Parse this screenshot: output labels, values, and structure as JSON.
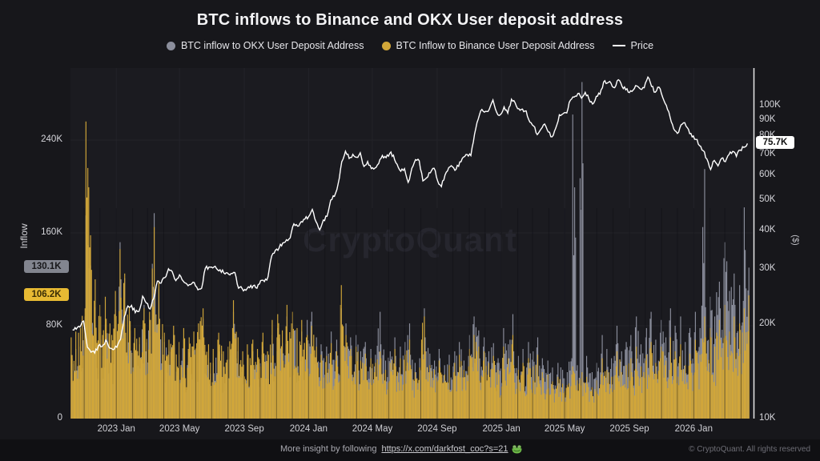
{
  "title": "BTC inflows to Binance and OKX User deposit address",
  "legend": [
    {
      "label": "BTC inflow to OKX User Deposit Address",
      "marker": "dot",
      "color": "#8b8e9c"
    },
    {
      "label": "BTC Inflow to Binance User Deposit Address",
      "marker": "dot",
      "color": "#d2a739"
    },
    {
      "label": "Price",
      "marker": "line",
      "color": "#ffffff"
    }
  ],
  "watermark": "CryptoQuant",
  "badges": {
    "okx": {
      "label": "130.1K",
      "value": 130.1,
      "bg": "#82858f",
      "fg": "#17171a"
    },
    "binance": {
      "label": "106.2K",
      "value": 106.2,
      "bg": "#e7ba33",
      "fg": "#3a2e06"
    },
    "price": {
      "label": "75.7K",
      "value": 75.7,
      "bg": "#ffffff",
      "fg": "#111111"
    }
  },
  "footer": {
    "text": "More insight by following",
    "link": "https://x.com/darkfost_coc?s=21",
    "frog_icon": "frog-emoji",
    "copyright": "© CryptoQuant. All rights reserved"
  },
  "colors": {
    "page_bg": "#17171b",
    "plot_bg": "#1b1b20",
    "grid": "#232329",
    "okx_bar": "#8b8e9c",
    "binance_bar": "#d2a739",
    "price_line": "#ffffff",
    "right_axis_line": "#e8e8ea",
    "month_shadow": "rgba(14,14,17,0.45)"
  },
  "chart_data": {
    "type": "mixed",
    "title": "BTC inflows to Binance and OKX User deposit address",
    "x_axis": {
      "start": "2022-10-06",
      "end": "2026-04-23",
      "tick_labels": [
        "2023 Jan",
        "2023 May",
        "2023 Sep",
        "2024 Jan",
        "2024 May",
        "2024 Sep",
        "2025 Jan",
        "2025 May",
        "2025 Sep",
        "2026 Jan"
      ],
      "tick_dates": [
        "2023-01-01",
        "2023-05-01",
        "2023-09-01",
        "2024-01-01",
        "2024-05-01",
        "2024-09-01",
        "2025-01-01",
        "2025-05-01",
        "2025-09-01",
        "2026-01-01"
      ]
    },
    "series_start": "2022-10-10",
    "interval_days": 7,
    "left_axis": {
      "title": "Inflow",
      "unit": "K BTC",
      "scale": "linear",
      "ticks": [
        {
          "label": "0",
          "value": 0
        },
        {
          "label": "80K",
          "value": 80
        },
        {
          "label": "160K",
          "value": 160
        },
        {
          "label": "240K",
          "value": 240
        }
      ]
    },
    "right_axis": {
      "title": "($)",
      "unit": "K USD",
      "scale": "log",
      "ticks": [
        {
          "label": "10K",
          "value": 10
        },
        {
          "label": "20K",
          "value": 20
        },
        {
          "label": "30K",
          "value": 30
        },
        {
          "label": "40K",
          "value": 40
        },
        {
          "label": "50K",
          "value": 50
        },
        {
          "label": "60K",
          "value": 60
        },
        {
          "label": "70K",
          "value": 70
        },
        {
          "label": "80K",
          "value": 80
        },
        {
          "label": "90K",
          "value": 90
        },
        {
          "label": "100K",
          "value": 100
        }
      ]
    },
    "series": [
      {
        "name": "BTC inflow to OKX User Deposit Address",
        "type": "bar",
        "axis": "left",
        "color": "#8b8e9c",
        "latest": 130.1,
        "values": [
          55,
          60,
          62,
          88,
          175,
          132,
          96,
          74,
          68,
          81,
          59,
          66,
          94,
          152,
          121,
          88,
          76,
          70,
          64,
          98,
          72,
          85,
          177,
          112,
          78,
          66,
          58,
          72,
          61,
          55,
          68,
          49,
          57,
          64,
          70,
          86,
          58,
          52,
          48,
          56,
          62,
          45,
          51,
          66,
          92,
          58,
          47,
          52,
          44,
          58,
          49,
          55,
          62,
          48,
          72,
          58,
          78,
          65,
          88,
          71,
          82,
          68,
          75,
          61,
          85,
          92,
          70,
          64,
          58,
          62,
          75,
          58,
          68,
          95,
          82,
          70,
          63,
          72,
          58,
          66,
          52,
          60,
          55,
          92,
          64,
          50,
          58,
          70,
          54,
          62,
          66,
          82,
          55,
          48,
          52,
          95,
          70,
          56,
          50,
          60,
          52,
          46,
          55,
          48,
          58,
          66,
          50,
          54,
          72,
          88,
          76,
          62,
          70,
          58,
          65,
          52,
          48,
          78,
          64,
          90,
          58,
          54,
          60,
          48,
          66,
          58,
          70,
          52,
          46,
          50,
          44,
          38,
          48,
          42,
          40,
          52,
          262,
          46,
          290,
          54,
          44,
          40,
          48,
          56,
          72,
          60,
          52,
          64,
          80,
          58,
          66,
          72,
          58,
          88,
          64,
          70,
          78,
          92,
          68,
          74,
          85,
          70,
          95,
          80,
          74,
          88,
          66,
          78,
          70,
          92,
          78,
          215,
          96,
          105,
          88,
          118,
          95,
          152,
          110,
          125,
          98,
          115,
          182,
          130.1
        ]
      },
      {
        "name": "BTC Inflow to Binance User Deposit Address",
        "type": "bar",
        "axis": "left",
        "color": "#d2a739",
        "latest": 106.2,
        "values": [
          70,
          75,
          78,
          95,
          256,
          158,
          120,
          98,
          88,
          105,
          82,
          90,
          110,
          146,
          125,
          96,
          84,
          78,
          70,
          95,
          82,
          92,
          165,
          118,
          86,
          74,
          68,
          80,
          72,
          66,
          78,
          60,
          70,
          75,
          82,
          95,
          70,
          64,
          60,
          68,
          74,
          58,
          62,
          78,
          102,
          70,
          58,
          64,
          55,
          68,
          60,
          66,
          74,
          58,
          85,
          70,
          90,
          76,
          98,
          82,
          92,
          78,
          85,
          70,
          72,
          80,
          62,
          55,
          50,
          54,
          65,
          50,
          58,
          115,
          72,
          60,
          54,
          62,
          50,
          56,
          45,
          52,
          48,
          58,
          52,
          42,
          48,
          60,
          45,
          52,
          55,
          68,
          46,
          40,
          44,
          88,
          58,
          46,
          42,
          50,
          44,
          38,
          46,
          40,
          48,
          55,
          42,
          45,
          60,
          72,
          62,
          50,
          58,
          48,
          54,
          42,
          38,
          62,
          52,
          72,
          46,
          42,
          48,
          38,
          52,
          45,
          55,
          40,
          35,
          38,
          32,
          28,
          36,
          30,
          29,
          38,
          45,
          33,
          40,
          36,
          30,
          27,
          33,
          38,
          52,
          42,
          36,
          45,
          58,
          40,
          46,
          52,
          40,
          62,
          45,
          50,
          55,
          66,
          48,
          52,
          62,
          50,
          70,
          58,
          52,
          64,
          46,
          56,
          50,
          68,
          55,
          88,
          70,
          78,
          62,
          85,
          68,
          98,
          75,
          88,
          70,
          82,
          95,
          106.2
        ]
      },
      {
        "name": "Price",
        "type": "line",
        "axis": "right",
        "color": "#ffffff",
        "latest": 75.7,
        "values": [
          19.2,
          19.3,
          19.6,
          20.5,
          16.9,
          16.3,
          16.2,
          17.1,
          17.0,
          17.8,
          16.8,
          16.6,
          16.9,
          17.9,
          21.1,
          22.9,
          23.0,
          21.8,
          22.0,
          24.6,
          23.4,
          22.4,
          24.2,
          27.5,
          27.1,
          28.2,
          30.1,
          29.5,
          27.6,
          28.8,
          27.5,
          26.9,
          26.8,
          27.2,
          25.8,
          26.1,
          30.2,
          30.5,
          30.3,
          30.2,
          29.9,
          29.2,
          29.2,
          29.1,
          29.3,
          26.1,
          26.0,
          25.7,
          26.2,
          26.6,
          26.1,
          27.6,
          27.4,
          28.4,
          33.1,
          34.5,
          35.1,
          36.4,
          37.3,
          37.8,
          41.9,
          41.2,
          42.6,
          43.4,
          44.2,
          46.6,
          42.6,
          40.1,
          43.1,
          44.3,
          49.9,
          51.3,
          56.2,
          66.2,
          71.5,
          67.8,
          69.9,
          68.4,
          70.7,
          63.9,
          66.3,
          62.9,
          63.2,
          65.3,
          69.3,
          68.2,
          70.4,
          69.5,
          65.0,
          61.7,
          62.9,
          56.9,
          63.1,
          67.2,
          66.7,
          57.5,
          58.8,
          61.0,
          63.1,
          57.4,
          55.1,
          60.1,
          63.4,
          63.8,
          62.6,
          66.1,
          68.5,
          69.8,
          69.2,
          81.1,
          90.6,
          97.2,
          95.9,
          97.4,
          104.3,
          95.1,
          93.6,
          99.1,
          94.6,
          104.8,
          102.1,
          97.8,
          97.5,
          96.2,
          88.6,
          86.1,
          80.8,
          84.1,
          87.4,
          82.4,
          79.5,
          84.6,
          93.5,
          94.3,
          94.8,
          104.2,
          106.5,
          109.3,
          105.7,
          110.3,
          105.1,
          101.2,
          107.1,
          108.8,
          119.1,
          118.1,
          117.9,
          114.1,
          121.0,
          115.2,
          112.4,
          110.1,
          112.2,
          115.6,
          112.9,
          114.1,
          123.4,
          115.1,
          110.4,
          114.6,
          106.4,
          100.2,
          92.1,
          84.3,
          81.5,
          86.8,
          88.2,
          84.0,
          79.5,
          78.0,
          74.5,
          71.8,
          67.5,
          62.5,
          66.8,
          64.2,
          67.9,
          66.2,
          69.8,
          71.4,
          68.8,
          72.1,
          73.6,
          75.7
        ]
      }
    ]
  }
}
